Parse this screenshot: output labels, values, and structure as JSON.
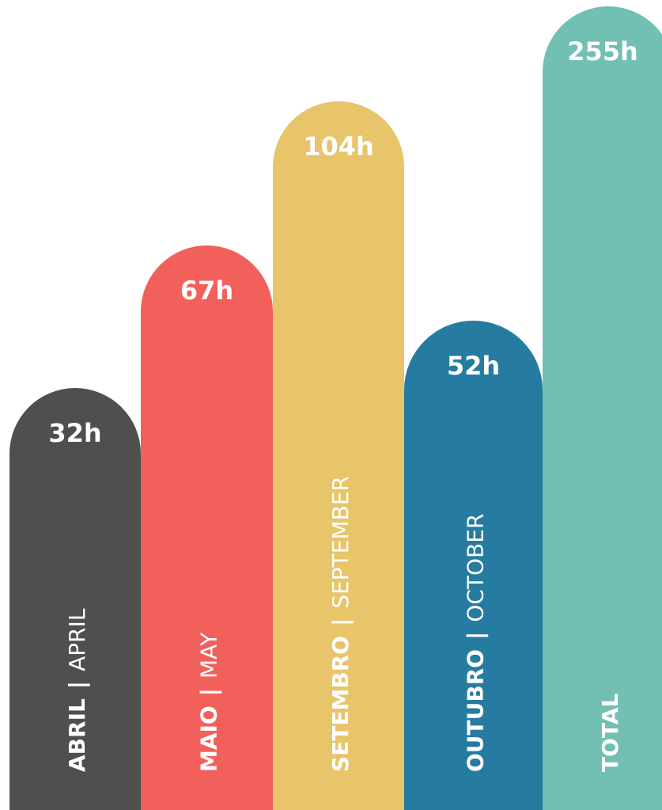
{
  "bars": [
    {
      "value_label": "32h",
      "label_bold": "ABRIL",
      "separator": "|",
      "label_light": "APRIL",
      "color": "#4f4f4d"
    },
    {
      "value_label": "67h",
      "label_bold": "MAIO",
      "separator": "|",
      "label_light": "MAY",
      "color": "#f2605c"
    },
    {
      "value_label": "104h",
      "label_bold": "SETEMBRO",
      "separator": "|",
      "label_light": "SEPTEMBER",
      "color": "#e8c46b"
    },
    {
      "value_label": "52h",
      "label_bold": "OUTUBRO",
      "separator": "|",
      "label_light": "OCTOBER",
      "color": "#267ba0"
    },
    {
      "value_label": "255h",
      "label_bold": "TOTAL",
      "color": "#72bfb3"
    }
  ]
}
